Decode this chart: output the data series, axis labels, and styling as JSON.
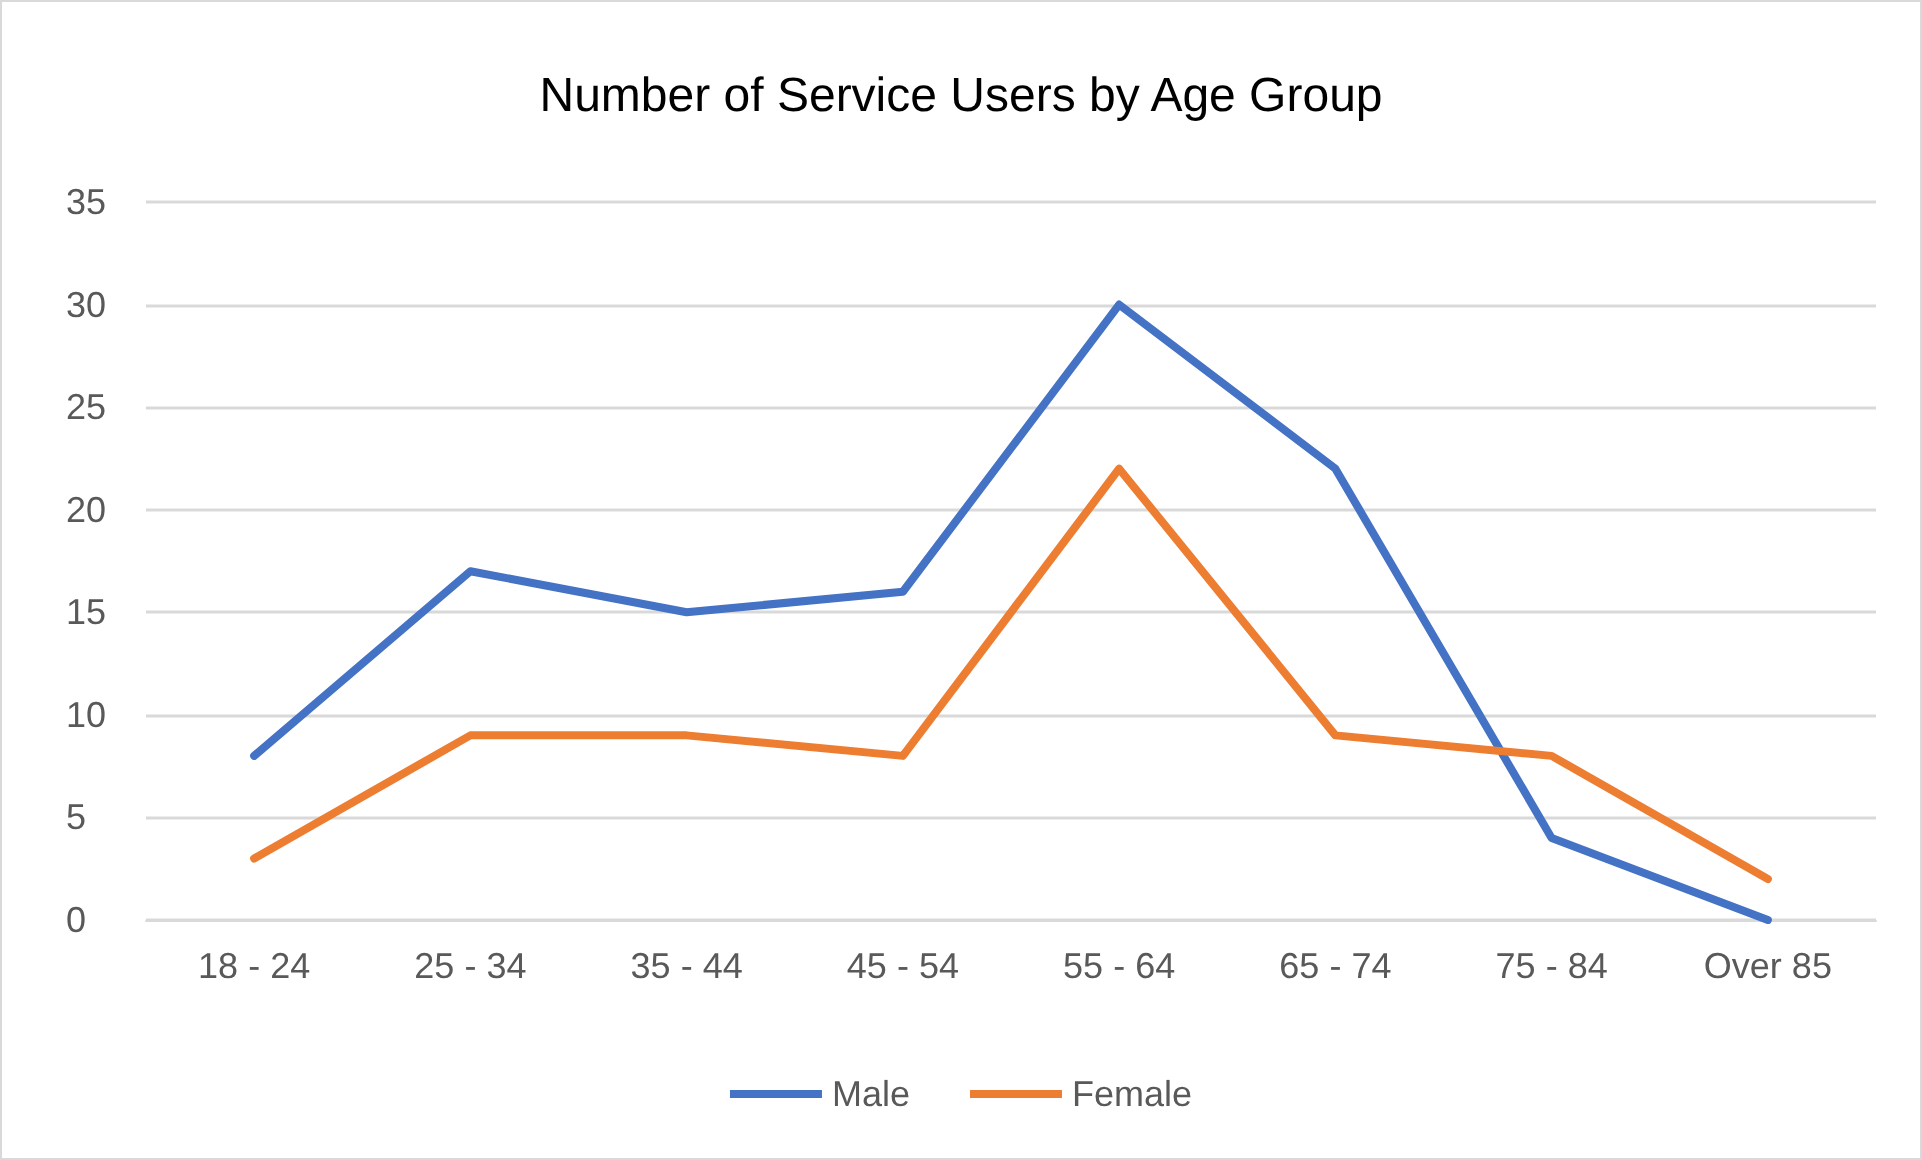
{
  "chart_data": {
    "type": "line",
    "title": "Number of Service Users by Age Group",
    "categories": [
      "18 - 24",
      "25 - 34",
      "35 - 44",
      "45 - 54",
      "55 - 64",
      "65 - 74",
      "75 - 84",
      "Over 85"
    ],
    "series": [
      {
        "name": "Male",
        "color": "#4472c4",
        "values": [
          8,
          17,
          15,
          16,
          30,
          22,
          4,
          0
        ]
      },
      {
        "name": "Female",
        "color": "#ed7d31",
        "values": [
          3,
          9,
          9,
          8,
          22,
          9,
          8,
          2
        ]
      }
    ],
    "ylim": [
      0,
      35
    ],
    "yticks": [
      0,
      5,
      10,
      15,
      20,
      25,
      30,
      35
    ],
    "grid": "y",
    "legend": "bottom",
    "marker": "none",
    "line_style": "solid"
  }
}
